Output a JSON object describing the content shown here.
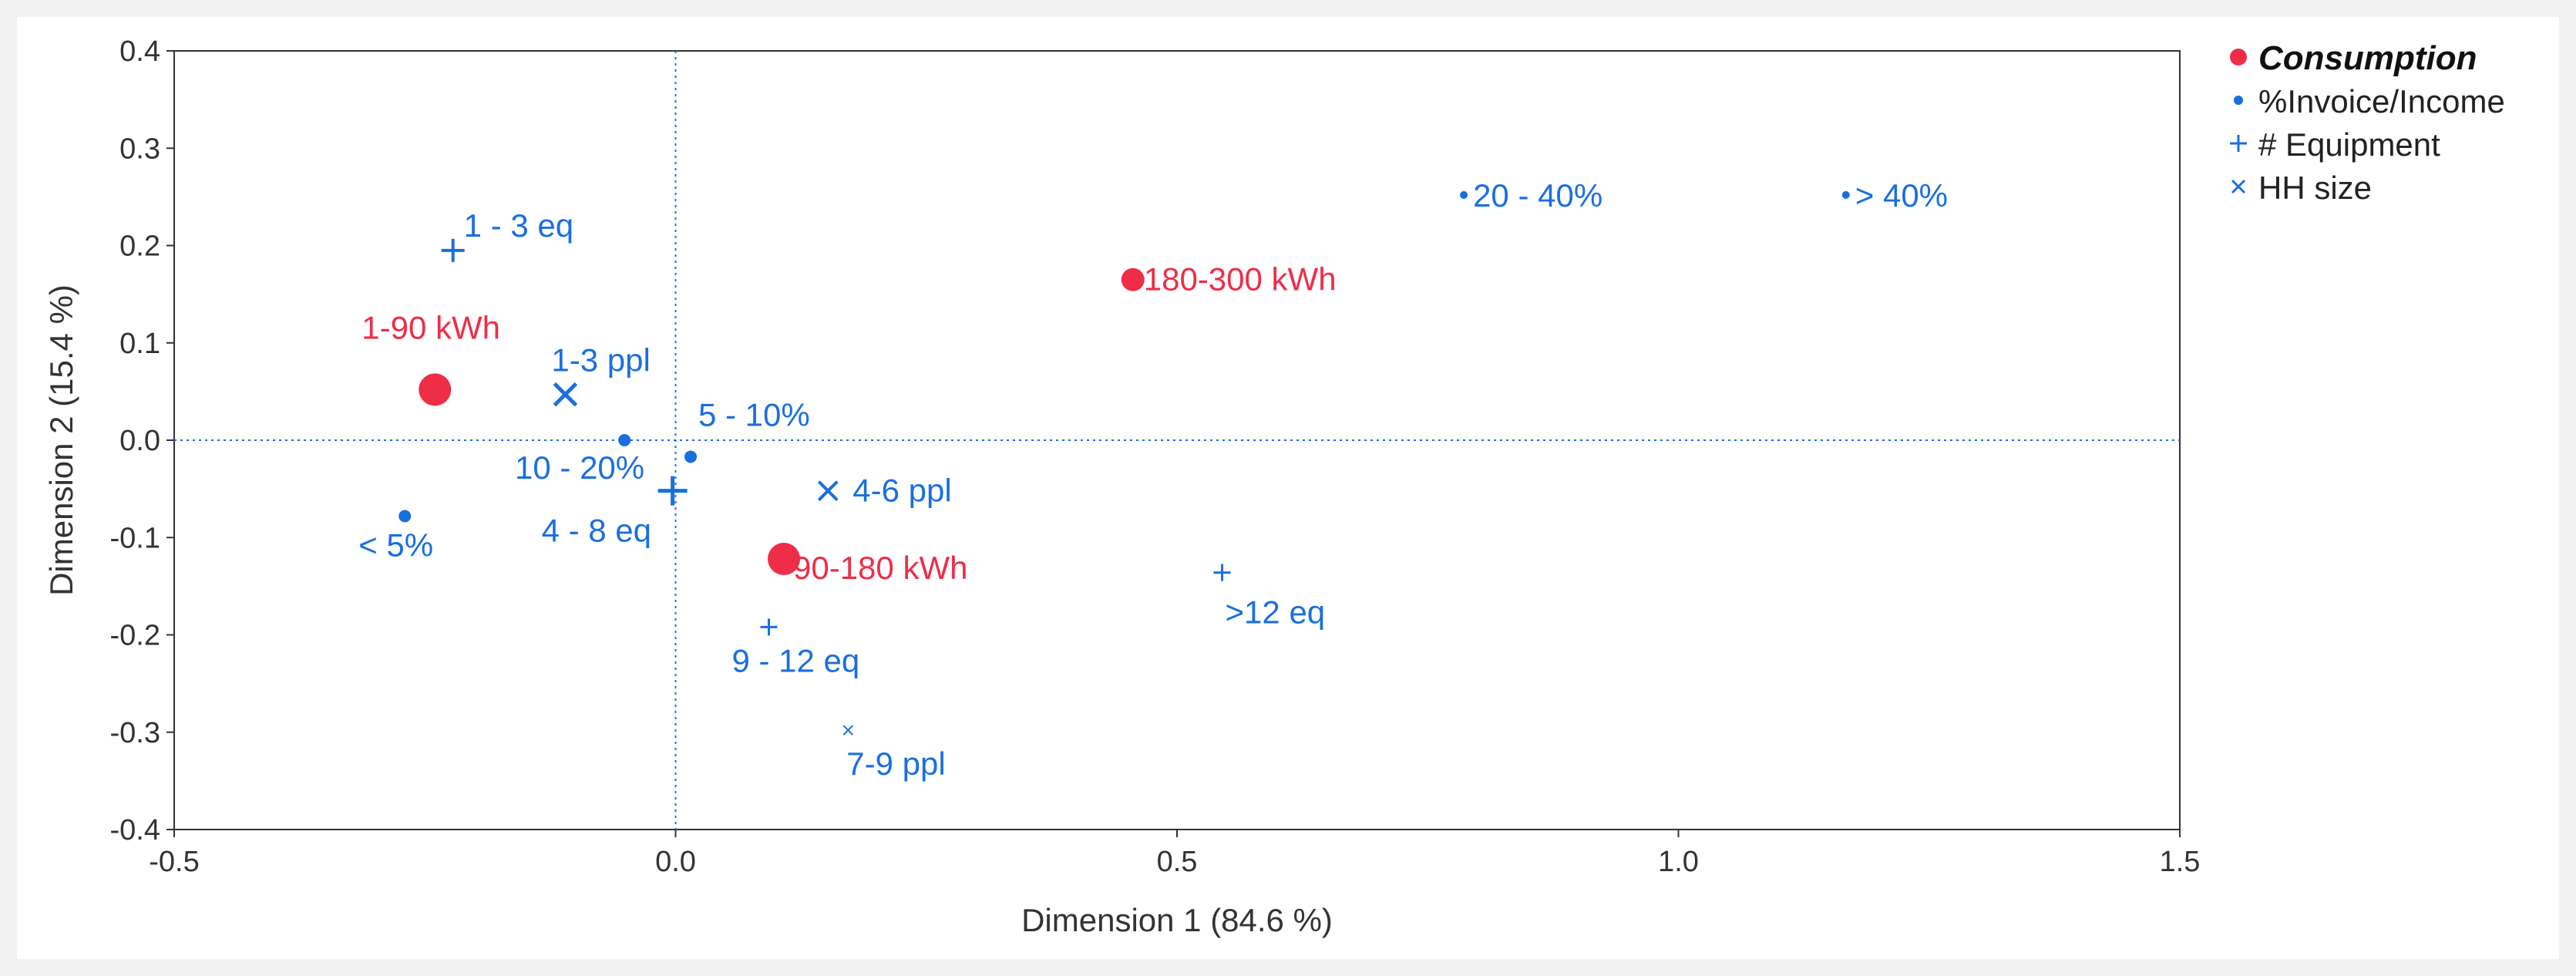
{
  "chart_data": {
    "type": "scatter",
    "title": "",
    "xlabel": "Dimension 1  (84.6 %)",
    "ylabel": "Dimension 2  (15.4 %)",
    "xlim": [
      -0.5,
      1.5
    ],
    "ylim": [
      -0.4,
      0.4
    ],
    "xticks": [
      -0.5,
      0.0,
      0.5,
      1.0,
      1.5
    ],
    "xtick_labels": [
      "-0.5",
      "0.0",
      "0.5",
      "1.0",
      "1.5"
    ],
    "yticks": [
      0.4,
      0.3,
      0.2,
      0.1,
      0.0,
      -0.1,
      -0.2,
      -0.3,
      -0.4
    ],
    "ytick_labels": [
      "0.4",
      "0.3",
      "0.2",
      "0.1",
      "0.0",
      "-0.1",
      "-0.2",
      "-0.3",
      "-0.4"
    ],
    "reference_lines": {
      "x": 0.0,
      "y": 0.0,
      "style": "dotted"
    },
    "grid": false,
    "legend_position": "top-right, outside plot",
    "colors": {
      "consumption": "#ef2d47",
      "blue": "#1a6fe0",
      "axis": "#333333",
      "refline": "#1a6fe0"
    },
    "series": [
      {
        "name": "Consumption",
        "marker": "circle",
        "points": [
          {
            "label": "1-90 kWh",
            "x": -0.24,
            "y": 0.052,
            "weight": 3
          },
          {
            "label": "180-300 kWh",
            "x": 0.456,
            "y": 0.165,
            "weight": 2
          },
          {
            "label": "90-180 kWh",
            "x": 0.108,
            "y": -0.122,
            "weight": 3
          }
        ]
      },
      {
        "name": "%Invoice/Income",
        "marker": "dot",
        "points": [
          {
            "label": "20 - 40%",
            "x": 0.786,
            "y": 0.252,
            "weight": 1
          },
          {
            "label": "> 40%",
            "x": 1.167,
            "y": 0.252,
            "weight": 1
          },
          {
            "label": "5 - 10%",
            "x": 0.015,
            "y": -0.017,
            "weight": 2
          },
          {
            "label": "10 - 20%",
            "x": -0.051,
            "y": 0.0,
            "weight": 2
          },
          {
            "label": "< 5%",
            "x": -0.27,
            "y": -0.078,
            "weight": 2
          }
        ]
      },
      {
        "name": "# Equipment",
        "marker": "plus",
        "points": [
          {
            "label": "1 - 3 eq",
            "x": -0.222,
            "y": 0.195,
            "weight": 2
          },
          {
            "label": "4 - 8 eq",
            "x": -0.003,
            "y": -0.052,
            "weight": 3
          },
          {
            "label": ">12 eq",
            "x": 0.545,
            "y": -0.136,
            "weight": 1
          },
          {
            "label": "9 - 12 eq",
            "x": 0.093,
            "y": -0.192,
            "weight": 1
          }
        ]
      },
      {
        "name": "HH size",
        "marker": "x",
        "points": [
          {
            "label": "1-3 ppl",
            "x": -0.11,
            "y": 0.047,
            "weight": 3
          },
          {
            "label": "4-6 ppl",
            "x": 0.152,
            "y": -0.052,
            "weight": 2
          },
          {
            "label": "7-9 ppl",
            "x": 0.172,
            "y": -0.298,
            "weight": 1
          }
        ]
      }
    ]
  }
}
